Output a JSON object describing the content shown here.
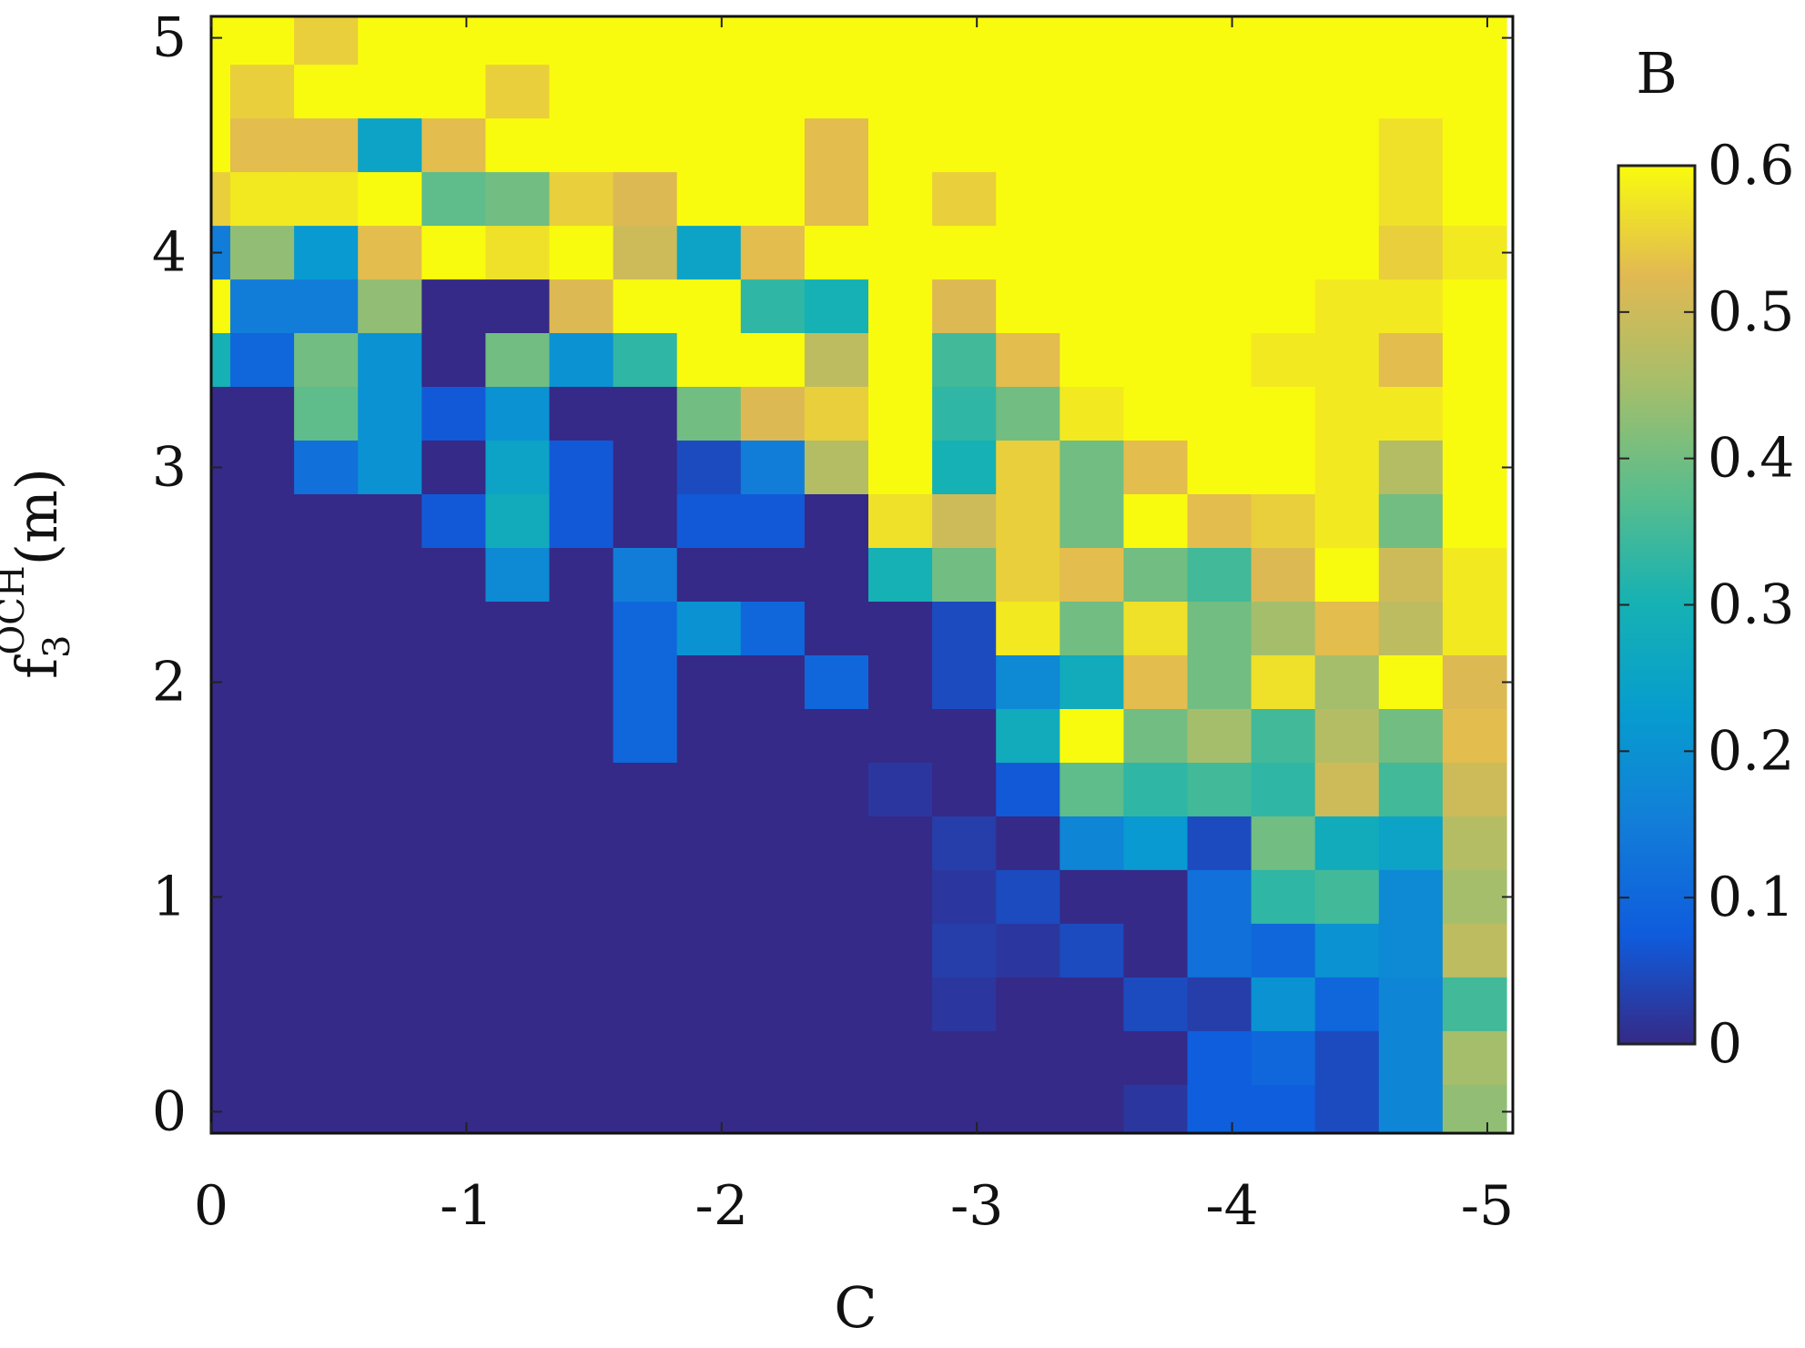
{
  "chart_data": {
    "type": "heatmap",
    "xlabel": "C",
    "ylabel_base": "f",
    "ylabel_sub": "3",
    "ylabel_sup": "OCH",
    "ylabel_unit": "(m)",
    "colorbar_title": "B",
    "x_range": [
      0,
      -5.1
    ],
    "y_range": [
      -0.1,
      5.1
    ],
    "x_ticks": [
      0,
      -1,
      -2,
      -3,
      -4,
      -5
    ],
    "x_tick_labels": [
      "0",
      "-1",
      "-2",
      "-3",
      "-4",
      "-5"
    ],
    "y_ticks": [
      0,
      1,
      2,
      3,
      4,
      5
    ],
    "y_tick_labels": [
      "0",
      "1",
      "2",
      "3",
      "4",
      "5"
    ],
    "clim": [
      0,
      0.6
    ],
    "colorbar_ticks": [
      0,
      0.1,
      0.2,
      0.3,
      0.4,
      0.5,
      0.6
    ],
    "colorbar_tick_labels": [
      "0",
      "0.1",
      "0.2",
      "0.3",
      "0.4",
      "0.5",
      "0.6"
    ],
    "colormap": "parula",
    "x_cells": [
      0.05,
      -0.2,
      -0.45,
      -0.7,
      -0.95,
      -1.2,
      -1.45,
      -1.7,
      -1.95,
      -2.2,
      -2.45,
      -2.7,
      -2.95,
      -3.2,
      -3.45,
      -3.7,
      -3.95,
      -4.2,
      -4.45,
      -4.7,
      -4.95
    ],
    "y_cells": [
      5.0,
      4.75,
      4.5,
      4.25,
      4.0,
      3.75,
      3.5,
      3.25,
      3.0,
      2.75,
      2.5,
      2.25,
      2.0,
      1.75,
      1.5,
      1.25,
      1.0,
      0.75,
      0.5,
      0.25,
      0.0
    ],
    "values": [
      [
        0.6,
        0.6,
        0.55,
        0.6,
        0.6,
        0.6,
        0.6,
        0.6,
        0.6,
        0.6,
        0.6,
        0.6,
        0.6,
        0.6,
        0.6,
        0.6,
        0.6,
        0.6,
        0.6,
        0.6,
        0.6
      ],
      [
        0.6,
        0.55,
        0.6,
        0.6,
        0.6,
        0.55,
        0.6,
        0.6,
        0.6,
        0.6,
        0.6,
        0.6,
        0.6,
        0.6,
        0.6,
        0.6,
        0.6,
        0.6,
        0.6,
        0.6,
        0.6
      ],
      [
        0.6,
        0.53,
        0.53,
        0.25,
        0.53,
        0.6,
        0.6,
        0.6,
        0.6,
        0.6,
        0.53,
        0.6,
        0.6,
        0.6,
        0.6,
        0.6,
        0.6,
        0.6,
        0.6,
        0.57,
        0.6
      ],
      [
        0.55,
        0.58,
        0.58,
        0.6,
        0.38,
        0.4,
        0.55,
        0.52,
        0.6,
        0.6,
        0.53,
        0.6,
        0.55,
        0.6,
        0.6,
        0.6,
        0.6,
        0.6,
        0.6,
        0.57,
        0.6
      ],
      [
        0.15,
        0.43,
        0.22,
        0.53,
        0.6,
        0.57,
        0.6,
        0.5,
        0.25,
        0.53,
        0.6,
        0.6,
        0.6,
        0.6,
        0.6,
        0.6,
        0.6,
        0.6,
        0.6,
        0.55,
        0.58
      ],
      [
        0.6,
        0.15,
        0.15,
        0.43,
        0.0,
        0.0,
        0.52,
        0.6,
        0.6,
        0.33,
        0.3,
        0.6,
        0.52,
        0.6,
        0.6,
        0.6,
        0.6,
        0.6,
        0.58,
        0.58,
        0.6
      ],
      [
        0.3,
        0.1,
        0.4,
        0.2,
        0.0,
        0.4,
        0.2,
        0.33,
        0.6,
        0.6,
        0.48,
        0.6,
        0.35,
        0.53,
        0.6,
        0.6,
        0.6,
        0.58,
        0.58,
        0.53,
        0.6
      ],
      [
        0.0,
        0.0,
        0.38,
        0.2,
        0.07,
        0.2,
        0.0,
        0.0,
        0.4,
        0.52,
        0.55,
        0.6,
        0.33,
        0.4,
        0.58,
        0.6,
        0.6,
        0.6,
        0.58,
        0.58,
        0.6
      ],
      [
        0.0,
        0.0,
        0.12,
        0.2,
        0.0,
        0.25,
        0.07,
        0.0,
        0.05,
        0.15,
        0.47,
        0.6,
        0.3,
        0.55,
        0.4,
        0.53,
        0.6,
        0.6,
        0.58,
        0.47,
        0.6
      ],
      [
        0.0,
        0.0,
        0.0,
        0.0,
        0.07,
        0.28,
        0.07,
        0.0,
        0.07,
        0.07,
        0.0,
        0.57,
        0.5,
        0.55,
        0.4,
        0.6,
        0.53,
        0.55,
        0.58,
        0.4,
        0.6
      ],
      [
        0.0,
        0.0,
        0.0,
        0.0,
        0.0,
        0.18,
        0.0,
        0.15,
        0.0,
        0.0,
        0.0,
        0.3,
        0.4,
        0.55,
        0.53,
        0.4,
        0.35,
        0.52,
        0.6,
        0.5,
        0.58
      ],
      [
        0.0,
        0.0,
        0.0,
        0.0,
        0.0,
        0.0,
        0.0,
        0.1,
        0.2,
        0.1,
        0.0,
        0.0,
        0.05,
        0.58,
        0.4,
        0.57,
        0.4,
        0.45,
        0.53,
        0.48,
        0.58
      ],
      [
        0.0,
        0.0,
        0.0,
        0.0,
        0.0,
        0.0,
        0.0,
        0.1,
        0.0,
        0.0,
        0.1,
        0.0,
        0.05,
        0.18,
        0.28,
        0.53,
        0.4,
        0.57,
        0.45,
        0.6,
        0.52
      ],
      [
        0.0,
        0.0,
        0.0,
        0.0,
        0.0,
        0.0,
        0.0,
        0.1,
        0.0,
        0.0,
        0.0,
        0.0,
        0.0,
        0.28,
        0.6,
        0.4,
        0.45,
        0.35,
        0.47,
        0.4,
        0.53
      ],
      [
        0.0,
        0.0,
        0.0,
        0.0,
        0.0,
        0.0,
        0.0,
        0.0,
        0.0,
        0.0,
        0.0,
        0.02,
        0.0,
        0.07,
        0.38,
        0.33,
        0.35,
        0.33,
        0.5,
        0.35,
        0.5
      ],
      [
        0.0,
        0.0,
        0.0,
        0.0,
        0.0,
        0.0,
        0.0,
        0.0,
        0.0,
        0.0,
        0.0,
        0.0,
        0.03,
        0.0,
        0.17,
        0.22,
        0.05,
        0.4,
        0.28,
        0.25,
        0.47
      ],
      [
        0.0,
        0.0,
        0.0,
        0.0,
        0.0,
        0.0,
        0.0,
        0.0,
        0.0,
        0.0,
        0.0,
        0.0,
        0.02,
        0.05,
        0.0,
        0.0,
        0.12,
        0.33,
        0.35,
        0.18,
        0.45
      ],
      [
        0.0,
        0.0,
        0.0,
        0.0,
        0.0,
        0.0,
        0.0,
        0.0,
        0.0,
        0.0,
        0.0,
        0.0,
        0.03,
        0.02,
        0.05,
        0.0,
        0.12,
        0.1,
        0.2,
        0.18,
        0.48
      ],
      [
        0.0,
        0.0,
        0.0,
        0.0,
        0.0,
        0.0,
        0.0,
        0.0,
        0.0,
        0.0,
        0.0,
        0.0,
        0.02,
        0.0,
        0.0,
        0.05,
        0.03,
        0.2,
        0.1,
        0.17,
        0.35
      ],
      [
        0.0,
        0.0,
        0.0,
        0.0,
        0.0,
        0.0,
        0.0,
        0.0,
        0.0,
        0.0,
        0.0,
        0.0,
        0.0,
        0.0,
        0.0,
        0.0,
        0.08,
        0.1,
        0.05,
        0.17,
        0.45
      ],
      [
        0.0,
        0.0,
        0.0,
        0.0,
        0.0,
        0.0,
        0.0,
        0.0,
        0.0,
        0.0,
        0.0,
        0.0,
        0.0,
        0.0,
        0.0,
        0.02,
        0.08,
        0.08,
        0.05,
        0.17,
        0.43
      ]
    ]
  }
}
